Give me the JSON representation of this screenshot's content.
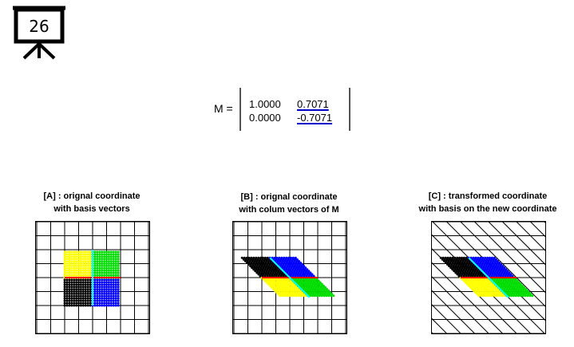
{
  "slide": {
    "number": "26"
  },
  "matrix": {
    "label": "M =",
    "rows": [
      [
        "1.0000",
        "0.7071"
      ],
      [
        "0.0000",
        "-0.7071"
      ]
    ],
    "values": [
      [
        1.0,
        0.7071
      ],
      [
        0.0,
        -0.7071
      ]
    ]
  },
  "panels": [
    {
      "id": "A",
      "title_line1": "[A] : orignal coordinate",
      "title_line2": "with basis vectors"
    },
    {
      "id": "B",
      "title_line1": "[B] : orignal coordinate",
      "title_line2": "with colum vectors of M"
    },
    {
      "id": "C",
      "title_line1": "[C] : transformed coordinate",
      "title_line2": "with basis on the new coordinate"
    }
  ],
  "colors": {
    "yellow": "#ffff00",
    "green": "#00dd00",
    "black": "#000000",
    "blue": "#0000ff",
    "basis_x": "#ff0000",
    "basis_y": "#00ffff",
    "magenta": "#ff00ff",
    "grid": "#000000"
  }
}
